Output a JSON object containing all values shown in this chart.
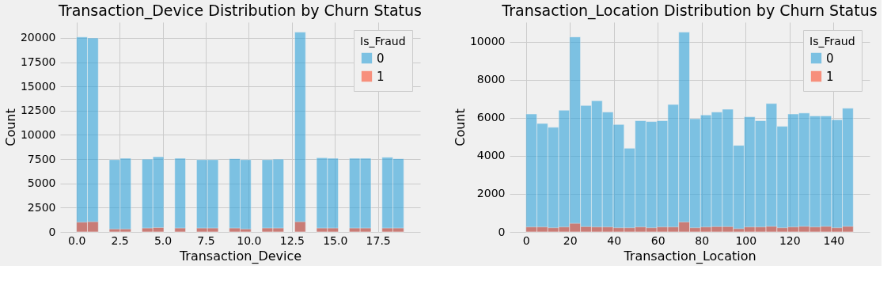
{
  "chart_data": [
    {
      "type": "histogram",
      "title": "Transaction_Device Distribution by Churn Status",
      "xlabel": "Transaction_Device",
      "ylabel": "Count",
      "legend_title": "Is_Fraud",
      "legend": "top right",
      "grid": true,
      "bins": [
        0,
        0.6333,
        1.2667,
        1.9,
        2.5333,
        3.1667,
        3.8,
        4.4333,
        5.0667,
        5.7,
        6.3333,
        6.9667,
        7.6,
        8.2333,
        8.8667,
        9.5,
        10.1333,
        10.7667,
        11.4,
        12.0333,
        12.6667,
        13.3,
        13.9333,
        14.5667,
        15.2,
        15.8333,
        16.4667,
        17.1,
        17.7333,
        18.3667,
        19
      ],
      "series": [
        {
          "name": "0",
          "color": "#30a2da",
          "values": [
            20100,
            20000,
            0,
            7450,
            7600,
            0,
            7500,
            7750,
            0,
            7600,
            0,
            7450,
            7450,
            0,
            7550,
            7450,
            0,
            7450,
            7500,
            0,
            20600,
            0,
            7650,
            7600,
            0,
            7600,
            7600,
            0,
            7700,
            7550
          ]
        },
        {
          "name": "1",
          "color": "#fc4f30",
          "values": [
            1000,
            1050,
            0,
            300,
            300,
            0,
            400,
            450,
            0,
            400,
            0,
            400,
            400,
            0,
            400,
            300,
            0,
            400,
            400,
            0,
            1050,
            0,
            400,
            400,
            0,
            400,
            400,
            0,
            400,
            400
          ]
        }
      ],
      "xlim": [
        -0.95,
        19.95
      ],
      "xticks": [
        {
          "value": 0,
          "label": "0.0"
        },
        2.5,
        {
          "value": 5,
          "label": "5.0"
        },
        7.5,
        {
          "value": 10,
          "label": "10.0"
        },
        12.5,
        {
          "value": 15,
          "label": "15.0"
        },
        17.5
      ],
      "ylim": [
        0,
        21630
      ],
      "yticks": [
        0,
        2500,
        5000,
        7500,
        10000,
        12500,
        15000,
        17500,
        20000
      ]
    },
    {
      "type": "histogram",
      "title": "Transaction_Location Distribution by Churn Status",
      "xlabel": "Transaction_Location",
      "ylabel": "Count",
      "legend_title": "Is_Fraud",
      "legend": "top right",
      "grid": true,
      "bins": [
        0,
        4.9667,
        9.9333,
        14.9,
        19.8667,
        24.8333,
        29.8,
        34.7667,
        39.7333,
        44.7,
        49.6667,
        54.6333,
        59.6,
        64.5667,
        69.5333,
        74.5,
        79.4667,
        84.4333,
        89.4,
        94.3667,
        99.3333,
        104.3,
        109.2667,
        114.2333,
        119.2,
        124.1667,
        129.1333,
        134.1,
        139.0667,
        144.0333,
        149
      ],
      "series": [
        {
          "name": "0",
          "color": "#30a2da",
          "values": [
            6200,
            5700,
            5500,
            6400,
            10250,
            6650,
            6900,
            6300,
            5650,
            4400,
            5850,
            5800,
            5850,
            6700,
            10500,
            5950,
            6150,
            6300,
            6450,
            4550,
            6050,
            5850,
            6750,
            5550,
            6200,
            6250,
            6100,
            6100,
            5900,
            6500
          ]
        },
        {
          "name": "1",
          "color": "#fc4f30",
          "values": [
            260,
            260,
            220,
            260,
            450,
            280,
            260,
            260,
            220,
            220,
            260,
            220,
            260,
            260,
            520,
            220,
            260,
            280,
            280,
            170,
            260,
            260,
            290,
            220,
            260,
            290,
            260,
            290,
            220,
            290
          ]
        }
      ],
      "xlim": [
        -7.45,
        156.45
      ],
      "xticks": [
        0,
        20,
        40,
        60,
        80,
        100,
        120,
        140
      ],
      "ylim": [
        0,
        11025
      ],
      "yticks": [
        0,
        2000,
        4000,
        6000,
        8000,
        10000
      ]
    }
  ]
}
